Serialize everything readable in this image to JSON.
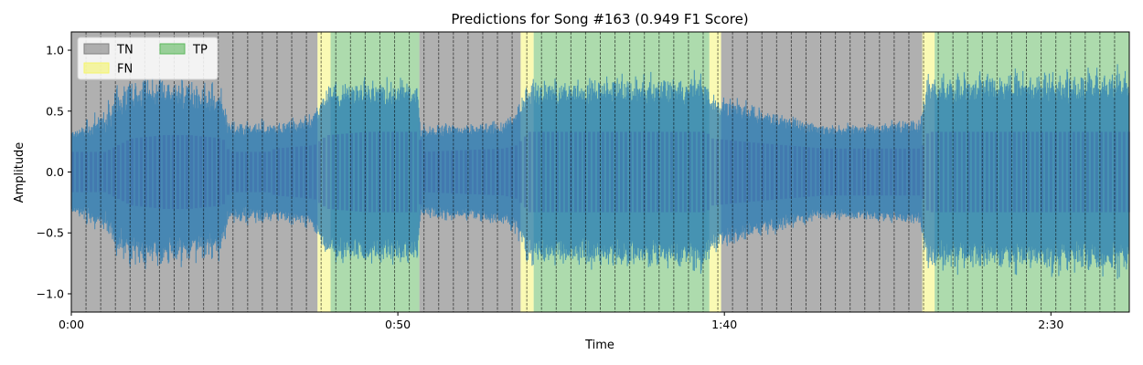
{
  "chart_data": {
    "type": "area",
    "title": "Predictions for Song #163 (0.949 F1 Score)",
    "xlabel": "Time",
    "ylabel": "Amplitude",
    "xlim": [
      0,
      162
    ],
    "ylim": [
      -1.15,
      1.15
    ],
    "xticks": [
      {
        "value": 0,
        "label": "0:00"
      },
      {
        "value": 50,
        "label": "0:50"
      },
      {
        "value": 100,
        "label": "1:40"
      },
      {
        "value": 150,
        "label": "2:30"
      }
    ],
    "yticks": [
      {
        "value": 1.0,
        "label": "1.0"
      },
      {
        "value": 0.5,
        "label": "0.5"
      },
      {
        "value": 0.0,
        "label": "0.0"
      },
      {
        "value": -0.5,
        "label": "−0.5"
      },
      {
        "value": -1.0,
        "label": "−1.0"
      }
    ],
    "legend": {
      "placement": "top-left",
      "entries": [
        {
          "label": "TN",
          "color": "#808080"
        },
        {
          "label": "TP",
          "color": "#5cb85c"
        },
        {
          "label": "FN",
          "color": "#f5f56a"
        }
      ]
    },
    "regions": [
      {
        "start": 0.0,
        "end": 37.7,
        "label": "TN"
      },
      {
        "start": 37.7,
        "end": 39.7,
        "label": "FN"
      },
      {
        "start": 39.7,
        "end": 53.3,
        "label": "TP"
      },
      {
        "start": 53.3,
        "end": 68.8,
        "label": "TN"
      },
      {
        "start": 68.8,
        "end": 70.8,
        "label": "FN"
      },
      {
        "start": 70.8,
        "end": 97.7,
        "label": "TP"
      },
      {
        "start": 97.7,
        "end": 99.5,
        "label": "FN"
      },
      {
        "start": 99.5,
        "end": 130.3,
        "label": "TN"
      },
      {
        "start": 130.3,
        "end": 132.2,
        "label": "FN"
      },
      {
        "start": 132.2,
        "end": 162.0,
        "label": "TP"
      }
    ],
    "region_colors": {
      "TN": "#808080",
      "TP": "#5cb85c",
      "FN": "#f5f56a"
    },
    "beat_interval": 2.25,
    "waveform": {
      "color": "#1f77b4",
      "envelope": [
        {
          "t": 0,
          "peak": 0.35,
          "body": 0.3
        },
        {
          "t": 5,
          "peak": 0.55,
          "body": 0.3
        },
        {
          "t": 7,
          "peak": 0.75,
          "body": 0.4
        },
        {
          "t": 9,
          "peak": 0.85,
          "body": 0.5
        },
        {
          "t": 14,
          "peak": 0.85,
          "body": 0.55
        },
        {
          "t": 18,
          "peak": 0.8,
          "body": 0.55
        },
        {
          "t": 23,
          "peak": 0.75,
          "body": 0.5
        },
        {
          "t": 24,
          "peak": 0.45,
          "body": 0.3
        },
        {
          "t": 30,
          "peak": 0.45,
          "body": 0.3
        },
        {
          "t": 31,
          "peak": 0.4,
          "body": 0.35
        },
        {
          "t": 37,
          "peak": 0.5,
          "body": 0.4
        },
        {
          "t": 39,
          "peak": 0.75,
          "body": 0.55
        },
        {
          "t": 45,
          "peak": 0.8,
          "body": 0.6
        },
        {
          "t": 53,
          "peak": 0.8,
          "body": 0.6
        },
        {
          "t": 53.5,
          "peak": 0.4,
          "body": 0.3
        },
        {
          "t": 66,
          "peak": 0.45,
          "body": 0.35
        },
        {
          "t": 68,
          "peak": 0.55,
          "body": 0.4
        },
        {
          "t": 70,
          "peak": 0.8,
          "body": 0.6
        },
        {
          "t": 97,
          "peak": 0.85,
          "body": 0.6
        },
        {
          "t": 98,
          "peak": 0.75,
          "body": 0.5
        },
        {
          "t": 103,
          "peak": 0.6,
          "body": 0.45
        },
        {
          "t": 115,
          "peak": 0.4,
          "body": 0.35
        },
        {
          "t": 130,
          "peak": 0.45,
          "body": 0.35
        },
        {
          "t": 131,
          "peak": 0.85,
          "body": 0.6
        },
        {
          "t": 162,
          "peak": 0.9,
          "body": 0.6
        }
      ]
    }
  }
}
